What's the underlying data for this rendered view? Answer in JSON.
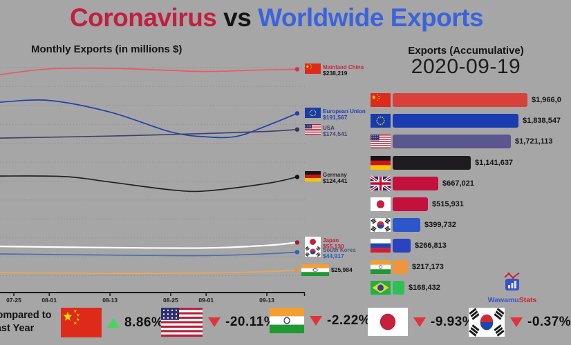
{
  "title": {
    "part1": "Coronavirus",
    "part2": " vs ",
    "part3": "Worldwide Exports",
    "part1_color": "#c11f41",
    "part2_color": "#141414",
    "part3_color": "#3a63dd"
  },
  "watermark": {
    "part1": "Wawamu",
    "part2": "Stats"
  },
  "footer": {
    "caption_line1": "Compared to",
    "caption_line2": "Last Year",
    "items": [
      {
        "id": "china",
        "flag": "cn",
        "trend": "up",
        "pct": "8.86%",
        "x": 88,
        "w": 59,
        "h": 43
      },
      {
        "id": "usa",
        "flag": "us",
        "trend": "down",
        "pct": "-20.11%",
        "x": 233,
        "w": 60,
        "h": 42
      },
      {
        "id": "india",
        "flag": "in",
        "trend": "down",
        "pct": "-2.22%",
        "x": 390,
        "w": 50,
        "h": 37
      },
      {
        "id": "japan",
        "flag": "jp",
        "trend": "down",
        "pct": "-9.93%",
        "x": 532,
        "w": 58,
        "h": 41
      },
      {
        "id": "south-korea",
        "flag": "kr",
        "trend": "down",
        "pct": "-0.37%",
        "x": 678,
        "w": 52,
        "h": 42
      }
    ]
  },
  "chart_data": [
    {
      "type": "line",
      "title": "Monthly Exports (in millions $)",
      "x_unit": "days after 2020-07-25",
      "x_end_day": 56,
      "x_ticks": [
        {
          "label": "07-25",
          "day": 0
        },
        {
          "label": "08-01",
          "day": 7
        },
        {
          "label": "08-13",
          "day": 19
        },
        {
          "label": "08-25",
          "day": 31
        },
        {
          "label": "09-01",
          "day": 38
        },
        {
          "label": "09-13",
          "day": 50
        }
      ],
      "y_axis": {
        "min": 0,
        "max": 245000,
        "grid_min": 20000,
        "grid_max": 240000,
        "grid_step": 20000,
        "gridlines": "dotted"
      },
      "legend_position": "right-of-line-ends",
      "series": [
        {
          "id": "china",
          "name": "Mainland China",
          "flag": "cn",
          "value_label": "$238,219",
          "color": "#f05562",
          "dot_color": "#e03048",
          "name_color": "#c92748",
          "value_color": "#141414",
          "points": [
            [
              -2.7,
              232600
            ],
            [
              7,
              238600
            ],
            [
              19,
              239200
            ],
            [
              31,
              237000
            ],
            [
              38,
              235800
            ],
            [
              50,
              237600
            ],
            [
              56,
              238219
            ]
          ]
        },
        {
          "id": "european-union",
          "name": "European Union",
          "flag": "eu",
          "value_label": "$191,567",
          "color": "#2040b0",
          "dot_color": "#2040b0",
          "name_color": "#2040b0",
          "value_color": "#2040b0",
          "points": [
            [
              -2.7,
              203500
            ],
            [
              7,
              205200
            ],
            [
              19,
              193000
            ],
            [
              31,
              172000
            ],
            [
              38,
              166800
            ],
            [
              44,
              167200
            ],
            [
              50,
              178500
            ],
            [
              56,
              191567
            ]
          ]
        },
        {
          "id": "usa",
          "name": "USA",
          "flag": "us",
          "value_label": "$174,541",
          "color": "#45406b",
          "dot_color": "#3a3560",
          "name_color": "#413c66",
          "value_color": "#4a4580",
          "points": [
            [
              -2.7,
              165500
            ],
            [
              19,
              167600
            ],
            [
              38,
              170300
            ],
            [
              50,
              172500
            ],
            [
              56,
              174541
            ]
          ]
        },
        {
          "id": "germany",
          "name": "Germany",
          "flag": "de",
          "value_label": "$124,441",
          "color": "#222222",
          "dot_color": "#111111",
          "name_color": "#2a2a2a",
          "value_color": "#141414",
          "points": [
            [
              -2.7,
              125400
            ],
            [
              10,
              124800
            ],
            [
              19,
              119000
            ],
            [
              31,
              110800
            ],
            [
              38,
              109600
            ],
            [
              50,
              117500
            ],
            [
              56,
              124441
            ]
          ]
        },
        {
          "id": "japan",
          "name": "Japan",
          "flag": "jp",
          "value_label": "$55,130",
          "line_width": 2.2,
          "color": "#ffffff",
          "dot_color": "#a81538",
          "name_color": "#c0203c",
          "value_color": "#c0203c",
          "points": [
            [
              -2.7,
              51000
            ],
            [
              19,
              49700
            ],
            [
              38,
              49300
            ],
            [
              50,
              52000
            ],
            [
              56,
              55130
            ]
          ]
        },
        {
          "id": "south-korea",
          "name": "South Korea",
          "flag": "kr",
          "value_label": "$44,917",
          "color": "#4a6fae",
          "dot_color": "#2f5fc0",
          "name_color": "#4a5a7a",
          "value_color": "#2f5fc0",
          "points": [
            [
              -2.7,
              43000
            ],
            [
              19,
              41800
            ],
            [
              38,
              41300
            ],
            [
              50,
              43200
            ],
            [
              56,
              44917
            ]
          ]
        },
        {
          "id": "india",
          "name": "",
          "flag": "in",
          "value_label": "$25,984",
          "flag_w": 40,
          "flag_h": 17,
          "color": "#f2a44f",
          "dot_color": "#ef9434",
          "name_color": "#141414",
          "value_color": "#141414",
          "points": [
            [
              -2.7,
              23300
            ],
            [
              19,
              22500
            ],
            [
              38,
              22800
            ],
            [
              50,
              24300
            ],
            [
              56,
              25984
            ]
          ]
        }
      ]
    },
    {
      "type": "bar",
      "title": "Exports (Accumulative)",
      "date": "2020-09-19",
      "axis_max": 1966000,
      "bars": [
        {
          "id": "china",
          "flag": "cn",
          "value": 1966000,
          "label": "$1,966,0",
          "color": "#d9403a"
        },
        {
          "id": "european-union",
          "flag": "eu",
          "value": 1838547,
          "label": "$1,838,547",
          "color": "#1b3cb0"
        },
        {
          "id": "usa",
          "flag": "us",
          "value": 1721113,
          "label": "$1,721,113",
          "color": "#5b5590"
        },
        {
          "id": "germany",
          "flag": "de",
          "value": 1141637,
          "label": "$1,141,637",
          "color": "#1e1c1e"
        },
        {
          "id": "uk",
          "flag": "gb",
          "value": 667021,
          "label": "$667,021",
          "color": "#c4103c"
        },
        {
          "id": "japan",
          "flag": "jp",
          "value": 515931,
          "label": "$515,931",
          "color": "#c4103c"
        },
        {
          "id": "south-korea",
          "flag": "kr",
          "value": 399732,
          "label": "$399,732",
          "color": "#2b57c8"
        },
        {
          "id": "russia",
          "flag": "ru",
          "value": 266813,
          "label": "$266,813",
          "color": "#2b43be"
        },
        {
          "id": "india",
          "flag": "in",
          "value": 217173,
          "label": "$217,173",
          "color": "#f0953c"
        },
        {
          "id": "brazil",
          "flag": "br",
          "value": 168432,
          "label": "$168,432",
          "color": "#2fc055"
        }
      ]
    }
  ]
}
